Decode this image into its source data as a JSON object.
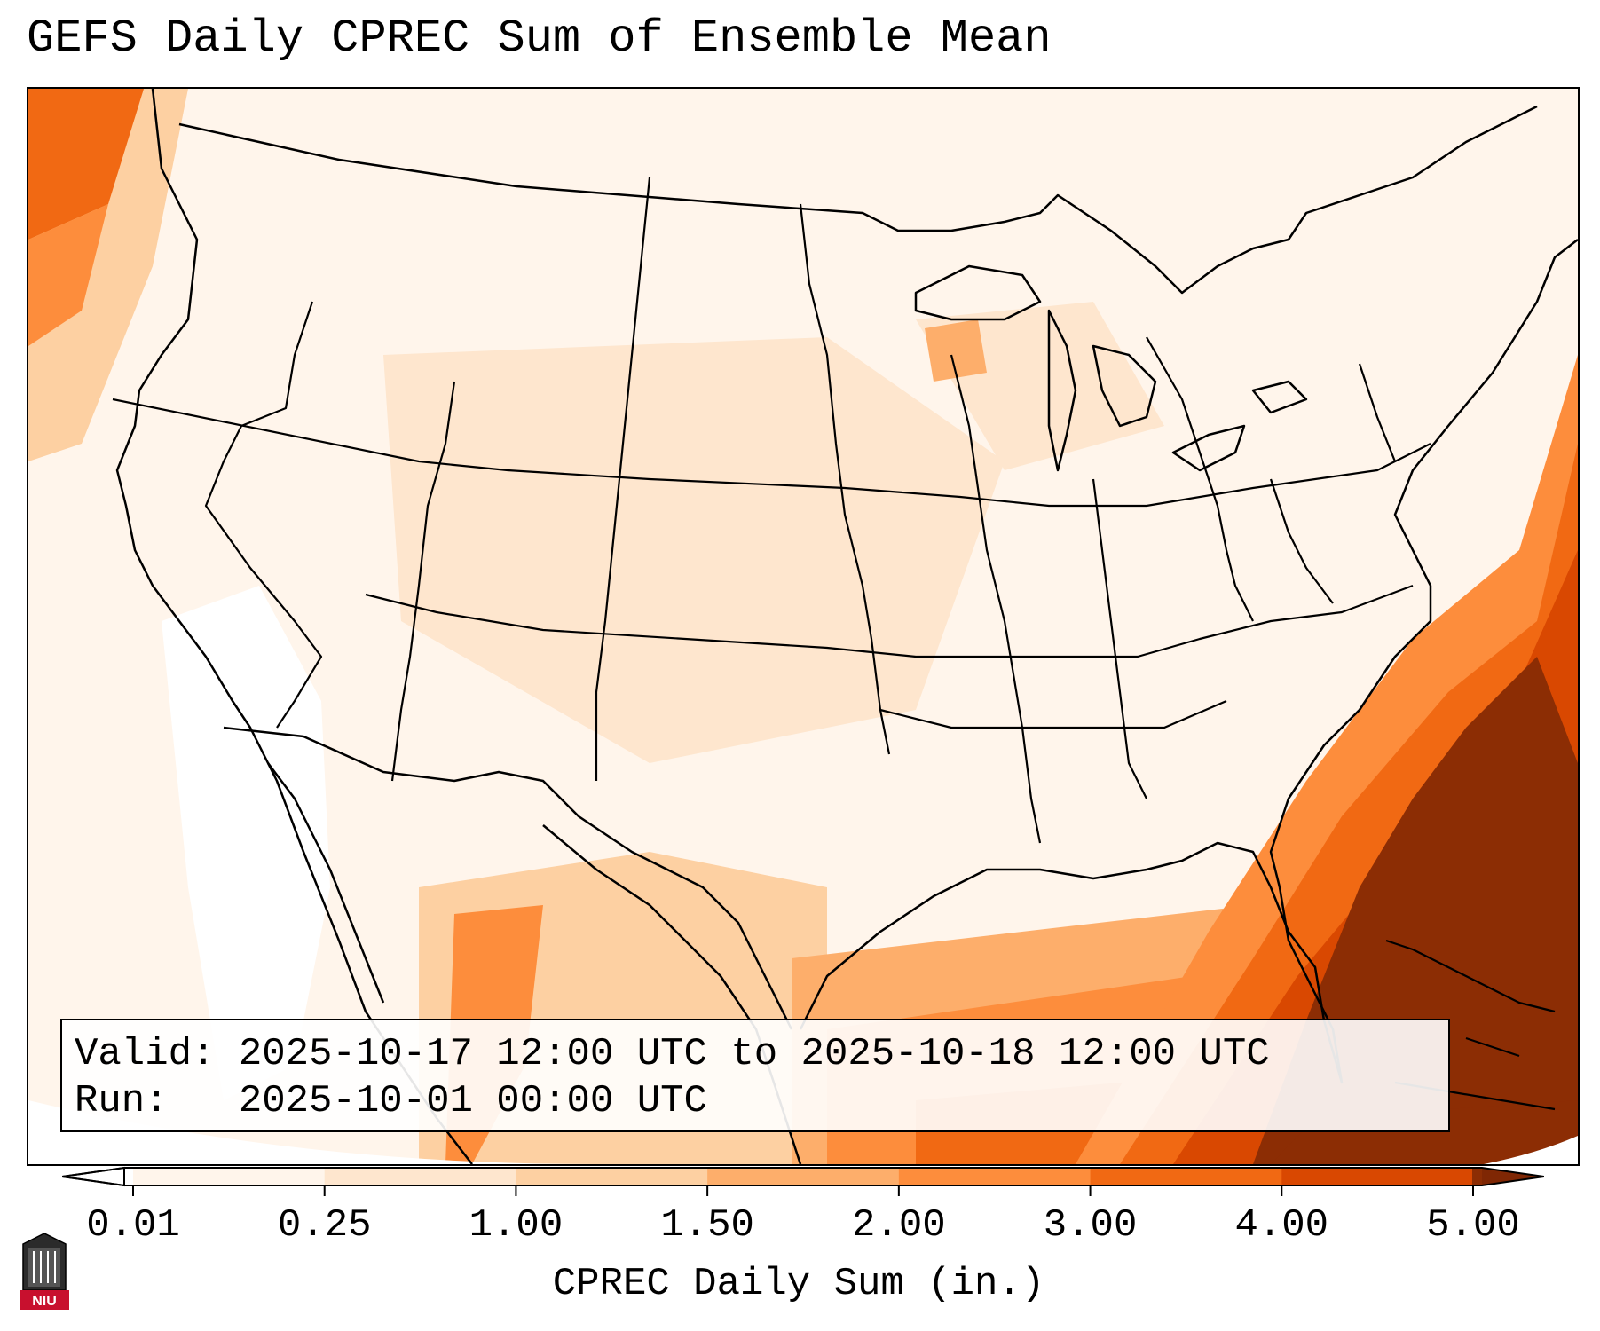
{
  "title": "GEFS Daily CPREC Sum of Ensemble Mean",
  "info": {
    "valid_label": "Valid:",
    "valid_value": "2025-10-17 12:00 UTC to 2025-10-18 12:00 UTC",
    "run_label": "Run:",
    "run_value": "2025-10-01 00:00 UTC"
  },
  "colorbar": {
    "label": "CPREC Daily Sum (in.)",
    "ticks": [
      "0.01",
      "0.25",
      "1.00",
      "1.50",
      "2.00",
      "3.00",
      "4.00",
      "5.00"
    ],
    "colors": [
      "#fff5eb",
      "#fee6ce",
      "#fdd0a2",
      "#fdae6b",
      "#fd8d3c",
      "#f16913",
      "#d94801",
      "#8c2d04"
    ],
    "under_color": "#ffffff",
    "over_color": "#7f2704",
    "extend": "both"
  },
  "logo": {
    "text": "NIU",
    "color": "#c8102e"
  },
  "map": {
    "projection": "Lambert conformal",
    "region": "Contiguous United States",
    "boundaries": [
      "coastlines",
      "state borders",
      "national borders"
    ],
    "field": "CPREC daily sum",
    "max_region": "Western Atlantic off the Southeast US coast and Florida",
    "secondary_max_region": "Gulf of Mexico and northern Mexico"
  }
}
